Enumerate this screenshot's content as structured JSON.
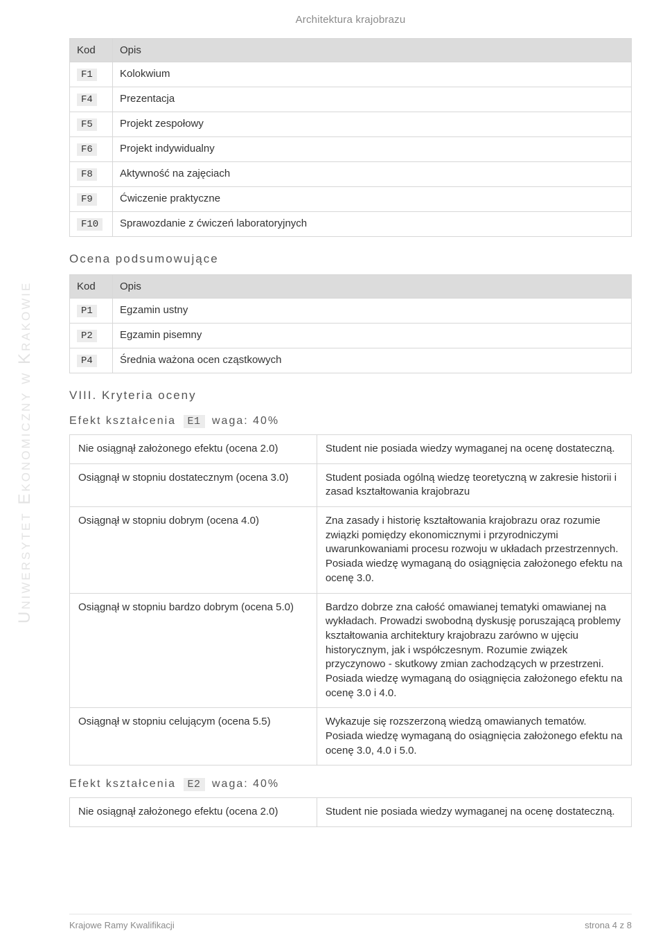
{
  "header": {
    "course": "Architektura krajobrazu"
  },
  "watermark": "Uniwersytet Ekonomiczny w Krakowie",
  "tables": {
    "forms": {
      "header": {
        "code": "Kod",
        "desc": "Opis"
      },
      "rows": [
        {
          "code": "F1",
          "desc": "Kolokwium"
        },
        {
          "code": "F4",
          "desc": "Prezentacja"
        },
        {
          "code": "F5",
          "desc": "Projekt zespołowy"
        },
        {
          "code": "F6",
          "desc": "Projekt indywidualny"
        },
        {
          "code": "F8",
          "desc": "Aktywność na zajęciach"
        },
        {
          "code": "F9",
          "desc": "Ćwiczenie praktyczne"
        },
        {
          "code": "F10",
          "desc": "Sprawozdanie z ćwiczeń laboratoryjnych"
        }
      ]
    },
    "summary_title": "Ocena podsumowujące",
    "summary": {
      "header": {
        "code": "Kod",
        "desc": "Opis"
      },
      "rows": [
        {
          "code": "P1",
          "desc": "Egzamin ustny"
        },
        {
          "code": "P2",
          "desc": "Egzamin pisemny"
        },
        {
          "code": "P4",
          "desc": "Średnia ważona ocen cząstkowych"
        }
      ]
    }
  },
  "section8": {
    "title": "VIII. Kryteria oceny",
    "effects": [
      {
        "label_prefix": "Efekt kształcenia",
        "code": "E1",
        "weight_label": "waga: 40%",
        "rows": [
          {
            "left": "Nie osiągnął założonego efektu (ocena 2.0)",
            "right": "Student nie posiada wiedzy wymaganej na ocenę dostateczną."
          },
          {
            "left": "Osiągnął w stopniu dostatecznym (ocena 3.0)",
            "right": "Student posiada ogólną wiedzę teoretyczną w zakresie historii i zasad kształtowania krajobrazu"
          },
          {
            "left": "Osiągnął w stopniu dobrym (ocena 4.0)",
            "right": "Zna zasady i historię kształtowania krajobrazu oraz rozumie związki pomiędzy ekonomicznymi i przyrodniczymi uwarunkowaniami procesu rozwoju w układach przestrzennych. Posiada wiedzę wymaganą do osiągnięcia założonego efektu na ocenę 3.0."
          },
          {
            "left": "Osiągnął w stopniu bardzo dobrym (ocena 5.0)",
            "right": "Bardzo dobrze zna całość omawianej tematyki omawianej na wykładach. Prowadzi swobodną dyskusję poruszającą problemy kształtowania architektury krajobrazu zarówno w ujęciu historycznym, jak i współczesnym. Rozumie związek przyczynowo - skutkowy zmian zachodzących w przestrzeni. Posiada wiedzę wymaganą do osiągnięcia założonego efektu na ocenę 3.0 i 4.0."
          },
          {
            "left": "Osiągnął w stopniu celującym (ocena 5.5)",
            "right": "Wykazuje się rozszerzoną wiedzą omawianych tematów. Posiada wiedzę wymaganą do osiągnięcia założonego efektu na ocenę 3.0, 4.0 i 5.0."
          }
        ]
      },
      {
        "label_prefix": "Efekt kształcenia",
        "code": "E2",
        "weight_label": "waga: 40%",
        "rows": [
          {
            "left": "Nie osiągnął założonego efektu (ocena 2.0)",
            "right": "Student nie posiada wiedzy wymaganej na ocenę dostateczną."
          }
        ]
      }
    ]
  },
  "footer": {
    "left": "Krajowe Ramy Kwalifikacji",
    "right": "strona 4 z 8"
  }
}
